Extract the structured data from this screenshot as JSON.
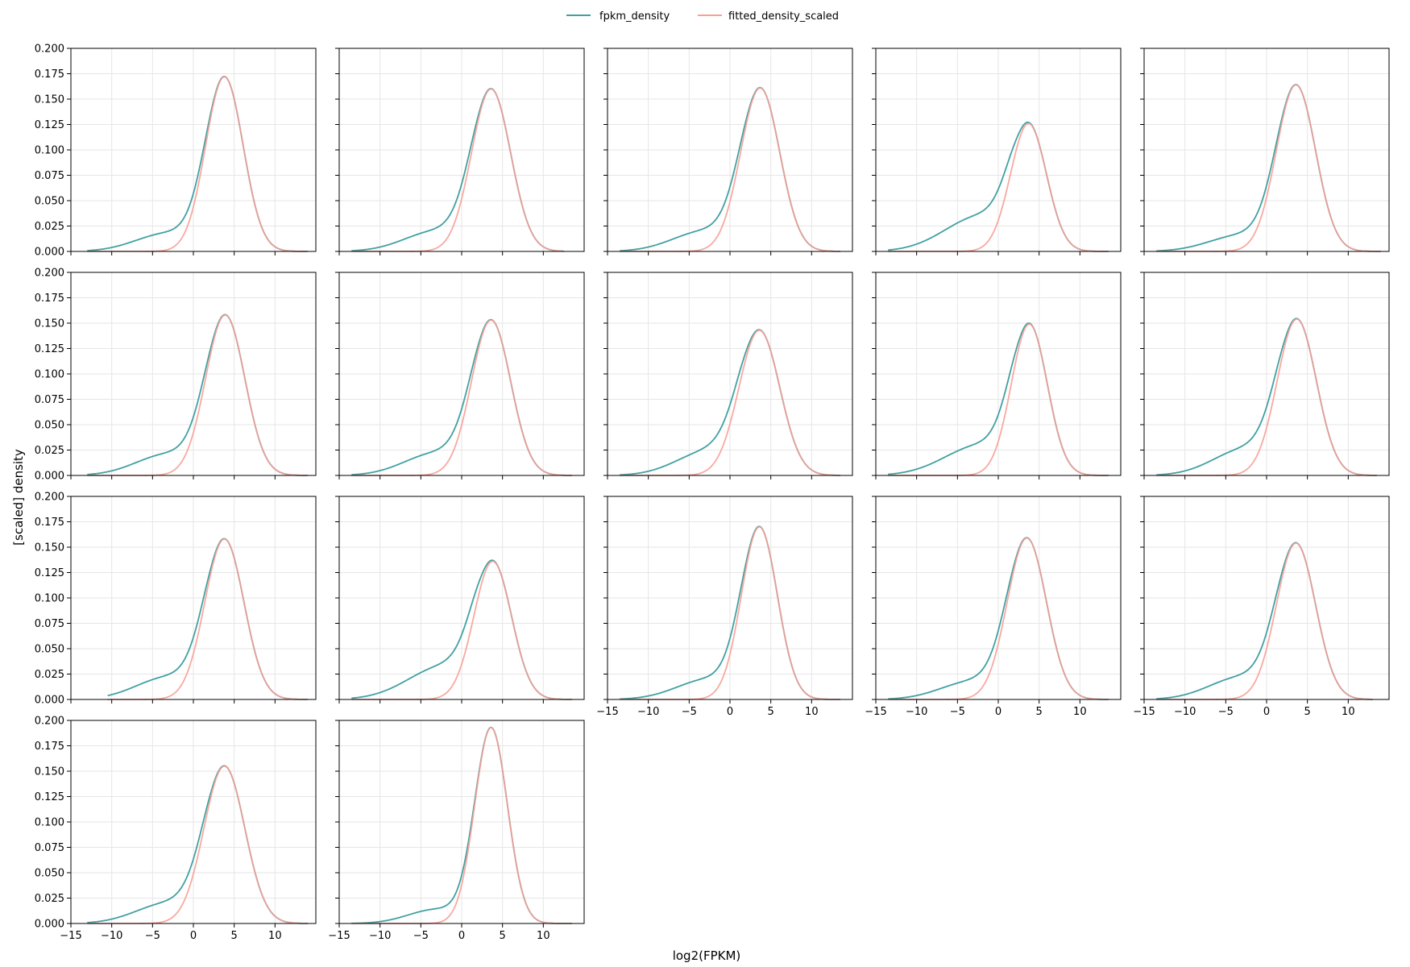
{
  "chart_data": {
    "type": "line",
    "layout": {
      "rows": 4,
      "cols": 5,
      "panels": 17
    },
    "xlabel": "log2(FPKM)",
    "ylabel": "[scaled] density",
    "xlim": [
      -15,
      15
    ],
    "ylim": [
      0,
      0.2
    ],
    "xticks": [
      -15,
      -10,
      -5,
      0,
      5,
      10
    ],
    "xtick_labels": [
      "−15",
      "−10",
      "−5",
      "0",
      "5",
      "10"
    ],
    "yticks": [
      0,
      0.025,
      0.05,
      0.075,
      0.1,
      0.125,
      0.15,
      0.175,
      0.2
    ],
    "ytick_labels": [
      "0.000",
      "0.025",
      "0.050",
      "0.075",
      "0.100",
      "0.125",
      "0.150",
      "0.175",
      "0.200"
    ],
    "grid": true,
    "legend": {
      "position": "top-center"
    },
    "series": [
      {
        "name": "fpkm_density",
        "color": "#42a0a2"
      },
      {
        "name": "fitted_density_scaled",
        "color": "#f7a097"
      }
    ],
    "panels": [
      {
        "peak_x": 3.8,
        "fitted_peak": 0.172,
        "fpkm_peak": 0.172,
        "sigma": 2.3,
        "tail_amp": 0.018,
        "tail_center": -3.0,
        "tail_sd": 4.0,
        "x_range": [
          -13,
          14
        ]
      },
      {
        "peak_x": 3.6,
        "fitted_peak": 0.16,
        "fpkm_peak": 0.16,
        "sigma": 2.4,
        "tail_amp": 0.02,
        "tail_center": -3.0,
        "tail_sd": 4.0,
        "x_range": [
          -13.5,
          12.5
        ]
      },
      {
        "peak_x": 3.7,
        "fitted_peak": 0.161,
        "fpkm_peak": 0.161,
        "sigma": 2.4,
        "tail_amp": 0.02,
        "tail_center": -3.0,
        "tail_sd": 4.0,
        "x_range": [
          -13.5,
          13.5
        ]
      },
      {
        "peak_x": 3.7,
        "fitted_peak": 0.126,
        "fpkm_peak": 0.126,
        "sigma": 2.2,
        "tail_amp": 0.035,
        "tail_center": -2.0,
        "tail_sd": 4.5,
        "x_range": [
          -13.5,
          13.5
        ]
      },
      {
        "peak_x": 3.6,
        "fitted_peak": 0.164,
        "fpkm_peak": 0.164,
        "sigma": 2.4,
        "tail_amp": 0.016,
        "tail_center": -3.0,
        "tail_sd": 4.0,
        "x_range": [
          -13.5,
          14
        ]
      },
      {
        "peak_x": 3.9,
        "fitted_peak": 0.158,
        "fpkm_peak": 0.158,
        "sigma": 2.4,
        "tail_amp": 0.021,
        "tail_center": -3.0,
        "tail_sd": 4.0,
        "x_range": [
          -13,
          14
        ]
      },
      {
        "peak_x": 3.6,
        "fitted_peak": 0.153,
        "fpkm_peak": 0.153,
        "sigma": 2.4,
        "tail_amp": 0.022,
        "tail_center": -3.0,
        "tail_sd": 4.0,
        "x_range": [
          -13.5,
          13.5
        ]
      },
      {
        "peak_x": 3.6,
        "fitted_peak": 0.143,
        "fpkm_peak": 0.143,
        "sigma": 2.5,
        "tail_amp": 0.024,
        "tail_center": -2.5,
        "tail_sd": 4.0,
        "x_range": [
          -13.5,
          13.5
        ]
      },
      {
        "peak_x": 3.8,
        "fitted_peak": 0.149,
        "fpkm_peak": 0.149,
        "sigma": 2.2,
        "tail_amp": 0.03,
        "tail_center": -2.0,
        "tail_sd": 4.5,
        "x_range": [
          -13.5,
          13.5
        ]
      },
      {
        "peak_x": 3.7,
        "fitted_peak": 0.154,
        "fpkm_peak": 0.154,
        "sigma": 2.4,
        "tail_amp": 0.026,
        "tail_center": -2.5,
        "tail_sd": 4.0,
        "x_range": [
          -13.5,
          13.5
        ]
      },
      {
        "peak_x": 3.8,
        "fitted_peak": 0.158,
        "fpkm_peak": 0.158,
        "sigma": 2.4,
        "tail_amp": 0.022,
        "tail_center": -3.0,
        "tail_sd": 4.0,
        "x_range": [
          -10.5,
          14
        ]
      },
      {
        "peak_x": 3.8,
        "fitted_peak": 0.136,
        "fpkm_peak": 0.136,
        "sigma": 2.3,
        "tail_amp": 0.033,
        "tail_center": -2.0,
        "tail_sd": 4.5,
        "x_range": [
          -13.5,
          13.5
        ]
      },
      {
        "peak_x": 3.6,
        "fitted_peak": 0.17,
        "fpkm_peak": 0.17,
        "sigma": 2.2,
        "tail_amp": 0.02,
        "tail_center": -2.5,
        "tail_sd": 4.0,
        "x_range": [
          -13.5,
          13.5
        ]
      },
      {
        "peak_x": 3.5,
        "fitted_peak": 0.159,
        "fpkm_peak": 0.159,
        "sigma": 2.4,
        "tail_amp": 0.018,
        "tail_center": -3.0,
        "tail_sd": 4.0,
        "x_range": [
          -13.5,
          13.5
        ]
      },
      {
        "peak_x": 3.6,
        "fitted_peak": 0.154,
        "fpkm_peak": 0.154,
        "sigma": 2.4,
        "tail_amp": 0.022,
        "tail_center": -3.0,
        "tail_sd": 4.0,
        "x_range": [
          -13.5,
          13
        ]
      },
      {
        "peak_x": 3.8,
        "fitted_peak": 0.155,
        "fpkm_peak": 0.155,
        "sigma": 2.5,
        "tail_amp": 0.02,
        "tail_center": -3.0,
        "tail_sd": 4.0,
        "x_range": [
          -13,
          14
        ]
      },
      {
        "peak_x": 3.6,
        "fitted_peak": 0.193,
        "fpkm_peak": 0.193,
        "sigma": 2.0,
        "tail_amp": 0.014,
        "tail_center": -3.0,
        "tail_sd": 3.5,
        "x_range": [
          -13.5,
          13.5
        ]
      }
    ]
  }
}
